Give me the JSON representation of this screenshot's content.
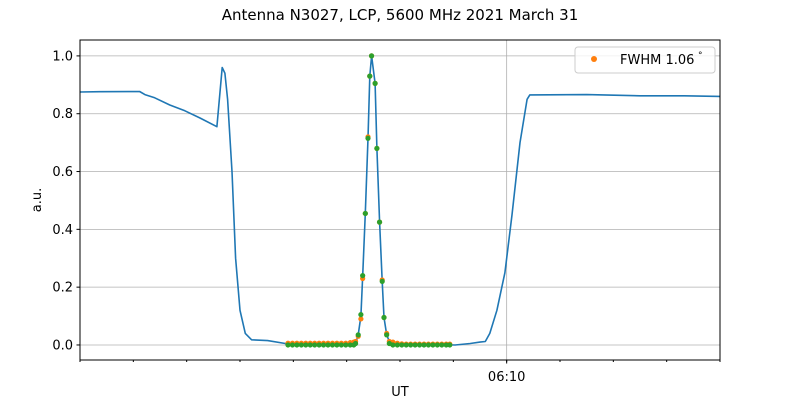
{
  "chart_data": {
    "type": "line",
    "title": "Antenna N3027, LCP, 5600 MHz 2021 March 31",
    "xlabel": "UT",
    "ylabel": "a.u.",
    "xlim": [
      "06:02:00",
      "06:14:00"
    ],
    "ylim": [
      -0.052,
      1.055
    ],
    "x_major_ticks": [
      "06:10"
    ],
    "x_minor_ticks_every_minutes": 1,
    "y_ticks": [
      "0.0",
      "0.2",
      "0.4",
      "0.6",
      "0.8",
      "1.0"
    ],
    "grid": true,
    "legend_placement": "upper right",
    "series": [
      {
        "style": "line",
        "color": "#1f77b4",
        "points": [
          [
            "06:02:00",
            0.875
          ],
          [
            "06:02:22",
            0.876
          ],
          [
            "06:03:07",
            0.877
          ],
          [
            "06:03:13",
            0.866
          ],
          [
            "06:03:24",
            0.855
          ],
          [
            "06:03:41",
            0.83
          ],
          [
            "06:03:58",
            0.81
          ],
          [
            "06:04:15",
            0.785
          ],
          [
            "06:04:34",
            0.755
          ],
          [
            "06:04:40",
            0.96
          ],
          [
            "06:04:43",
            0.94
          ],
          [
            "06:04:46",
            0.85
          ],
          [
            "06:04:51",
            0.6
          ],
          [
            "06:04:55",
            0.3
          ],
          [
            "06:05:00",
            0.12
          ],
          [
            "06:05:06",
            0.04
          ],
          [
            "06:05:13",
            0.018
          ],
          [
            "06:05:31",
            0.015
          ],
          [
            "06:05:51",
            0.005
          ],
          [
            "06:05:54",
            0.0
          ],
          [
            "06:07:04",
            0.0
          ],
          [
            "06:07:10",
            0.005
          ],
          [
            "06:07:13",
            0.035
          ],
          [
            "06:07:16",
            0.1
          ],
          [
            "06:07:18",
            0.24
          ],
          [
            "06:07:21",
            0.455
          ],
          [
            "06:07:24",
            0.715
          ],
          [
            "06:07:26",
            0.93
          ],
          [
            "06:07:28",
            1.0
          ],
          [
            "06:07:32",
            0.905
          ],
          [
            "06:07:34",
            0.68
          ],
          [
            "06:07:37",
            0.425
          ],
          [
            "06:07:40",
            0.22
          ],
          [
            "06:07:42",
            0.095
          ],
          [
            "06:07:45",
            0.035
          ],
          [
            "06:07:49",
            0.005
          ],
          [
            "06:09:02",
            0.0
          ],
          [
            "06:09:19",
            0.005
          ],
          [
            "06:09:30",
            0.01
          ],
          [
            "06:09:36",
            0.012
          ],
          [
            "06:09:41",
            0.04
          ],
          [
            "06:09:49",
            0.12
          ],
          [
            "06:09:58",
            0.25
          ],
          [
            "06:10:06",
            0.45
          ],
          [
            "06:10:15",
            0.7
          ],
          [
            "06:10:23",
            0.85
          ],
          [
            "06:10:26",
            0.865
          ],
          [
            "06:11:30",
            0.866
          ],
          [
            "06:12:30",
            0.862
          ],
          [
            "06:13:20",
            0.862
          ],
          [
            "06:14:00",
            0.86
          ]
        ]
      },
      {
        "name": "FWHM 1.06$^\\circ$",
        "legend_label": "FWHM 1.06",
        "legend_sup": "°",
        "style": "dots",
        "color": "#ff7f0e",
        "points": [
          [
            "06:05:54",
            0.006
          ],
          [
            "06:05:59",
            0.006
          ],
          [
            "06:06:04",
            0.006
          ],
          [
            "06:06:09",
            0.006
          ],
          [
            "06:06:14",
            0.006
          ],
          [
            "06:06:19",
            0.006
          ],
          [
            "06:06:24",
            0.006
          ],
          [
            "06:06:29",
            0.006
          ],
          [
            "06:06:34",
            0.006
          ],
          [
            "06:06:39",
            0.006
          ],
          [
            "06:06:44",
            0.006
          ],
          [
            "06:06:49",
            0.006
          ],
          [
            "06:06:54",
            0.006
          ],
          [
            "06:06:59",
            0.006
          ],
          [
            "06:07:04",
            0.008
          ],
          [
            "06:07:08",
            0.01
          ],
          [
            "06:07:10",
            0.012
          ],
          [
            "06:07:13",
            0.03
          ],
          [
            "06:07:16",
            0.09
          ],
          [
            "06:07:18",
            0.23
          ],
          [
            "06:07:21",
            0.455
          ],
          [
            "06:07:24",
            0.72
          ],
          [
            "06:07:26",
            0.93
          ],
          [
            "06:07:28",
            1.0
          ],
          [
            "06:07:32",
            0.905
          ],
          [
            "06:07:34",
            0.68
          ],
          [
            "06:07:37",
            0.425
          ],
          [
            "06:07:40",
            0.225
          ],
          [
            "06:07:42",
            0.095
          ],
          [
            "06:07:45",
            0.04
          ],
          [
            "06:07:48",
            0.012
          ],
          [
            "06:07:52",
            0.01
          ],
          [
            "06:07:57",
            0.006
          ],
          [
            "06:08:02",
            0.004
          ],
          [
            "06:08:07",
            0.003
          ],
          [
            "06:08:12",
            0.003
          ],
          [
            "06:08:17",
            0.003
          ],
          [
            "06:08:22",
            0.003
          ],
          [
            "06:08:27",
            0.003
          ],
          [
            "06:08:32",
            0.003
          ],
          [
            "06:08:37",
            0.003
          ],
          [
            "06:08:42",
            0.003
          ],
          [
            "06:08:47",
            0.003
          ],
          [
            "06:08:52",
            0.003
          ],
          [
            "06:08:56",
            0.003
          ]
        ]
      },
      {
        "style": "dots",
        "color": "#2ca02c",
        "points": [
          [
            "06:05:54",
            0.0
          ],
          [
            "06:05:59",
            0.0
          ],
          [
            "06:06:04",
            0.0
          ],
          [
            "06:06:09",
            0.0
          ],
          [
            "06:06:14",
            0.0
          ],
          [
            "06:06:19",
            0.0
          ],
          [
            "06:06:24",
            0.0
          ],
          [
            "06:06:29",
            0.0
          ],
          [
            "06:06:34",
            0.0
          ],
          [
            "06:06:39",
            0.0
          ],
          [
            "06:06:44",
            0.0
          ],
          [
            "06:06:49",
            0.0
          ],
          [
            "06:06:54",
            0.0
          ],
          [
            "06:06:59",
            0.0
          ],
          [
            "06:07:04",
            0.0
          ],
          [
            "06:07:08",
            0.0
          ],
          [
            "06:07:10",
            0.005
          ],
          [
            "06:07:13",
            0.035
          ],
          [
            "06:07:16",
            0.105
          ],
          [
            "06:07:18",
            0.24
          ],
          [
            "06:07:21",
            0.455
          ],
          [
            "06:07:24",
            0.715
          ],
          [
            "06:07:26",
            0.93
          ],
          [
            "06:07:28",
            1.0
          ],
          [
            "06:07:32",
            0.905
          ],
          [
            "06:07:34",
            0.68
          ],
          [
            "06:07:37",
            0.425
          ],
          [
            "06:07:40",
            0.22
          ],
          [
            "06:07:42",
            0.095
          ],
          [
            "06:07:45",
            0.035
          ],
          [
            "06:07:48",
            0.005
          ],
          [
            "06:07:52",
            0.0
          ],
          [
            "06:07:57",
            0.0
          ],
          [
            "06:08:02",
            0.0
          ],
          [
            "06:08:07",
            0.0
          ],
          [
            "06:08:12",
            0.0
          ],
          [
            "06:08:17",
            0.0
          ],
          [
            "06:08:22",
            0.0
          ],
          [
            "06:08:27",
            0.0
          ],
          [
            "06:08:32",
            0.0
          ],
          [
            "06:08:37",
            0.0
          ],
          [
            "06:08:42",
            0.0
          ],
          [
            "06:08:47",
            0.0
          ],
          [
            "06:08:52",
            0.0
          ],
          [
            "06:08:56",
            0.0
          ]
        ]
      }
    ]
  }
}
